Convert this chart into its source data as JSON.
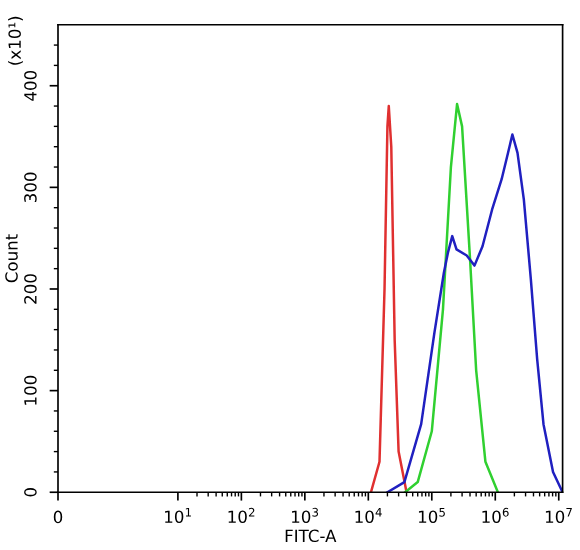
{
  "chart_data": {
    "type": "line",
    "xlabel": "FITC-A",
    "ylabel": "Count",
    "annotations": [
      "(x10¹)"
    ],
    "log": "x",
    "xlim": [
      0,
      11500000
    ],
    "xticks": [
      0,
      {
        "value": 10,
        "label": "10$^{1}$"
      },
      {
        "value": 100,
        "label": "10$^{2}$"
      },
      {
        "value": 1000,
        "label": "10$^{3}$"
      },
      {
        "value": 10000,
        "label": "10$^{4}$"
      },
      {
        "value": 100000,
        "label": "10$^{5}$"
      },
      {
        "value": 1000000,
        "label": "10$^{6}$"
      },
      {
        "value": 10000000,
        "label": "10$^{7}$"
      }
    ],
    "ylim": [
      0,
      460
    ],
    "yticks": [
      0,
      100,
      200,
      300,
      400
    ],
    "grid": false,
    "legend": false,
    "marker": "none",
    "line_style": "solid",
    "series": [
      {
        "color": "#e03030",
        "x": [
          11000,
          15000,
          18000,
          20000,
          21000,
          23000,
          26000,
          30000,
          40000
        ],
        "values": [
          0,
          30,
          200,
          360,
          380,
          340,
          150,
          40,
          0
        ]
      },
      {
        "color": "#30d030",
        "x": [
          38000,
          60000,
          100000,
          150000,
          200000,
          250000,
          300000,
          400000,
          500000,
          700000,
          1100000
        ],
        "values": [
          0,
          10,
          60,
          180,
          320,
          382,
          360,
          230,
          120,
          30,
          0
        ]
      },
      {
        "color": "#2020c0",
        "x": [
          20000,
          37000,
          68000,
          110000,
          155000,
          180000,
          210000,
          245000,
          355000,
          470000,
          630000,
          890000,
          1260000,
          1590000,
          1860000,
          2240000,
          2820000,
          3630000,
          4570000,
          5750000,
          8130000,
          11500000
        ],
        "values": [
          0,
          10,
          67,
          157,
          216,
          236,
          252,
          239,
          233,
          223,
          242,
          278,
          308,
          334,
          352,
          334,
          288,
          210,
          131,
          67,
          20,
          0
        ]
      }
    ]
  }
}
